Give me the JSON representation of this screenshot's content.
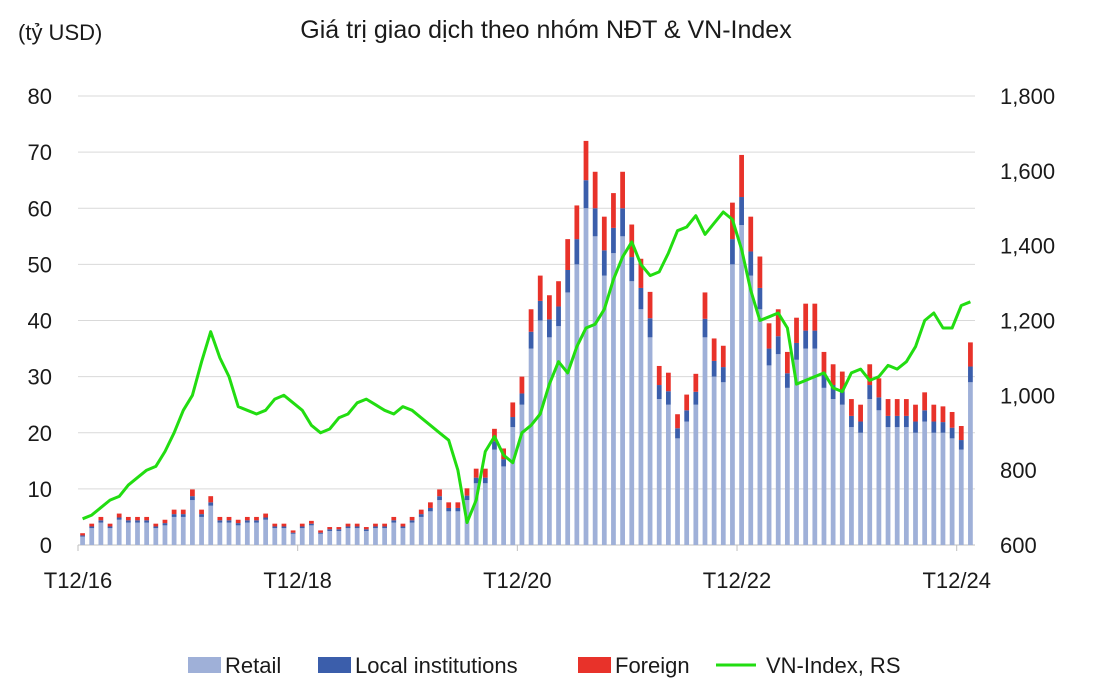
{
  "chart_data": {
    "type": "bar",
    "title": "Giá trị giao dịch theo nhóm NĐT & VN-Index",
    "y_unit_label": "(tỷ USD)",
    "ylim": [
      0,
      80
    ],
    "yticks": [
      "0",
      "10",
      "20",
      "30",
      "40",
      "50",
      "60",
      "70",
      "80"
    ],
    "y2lim": [
      600,
      1800
    ],
    "y2ticks": [
      "600",
      "800",
      "1,000",
      "1,200",
      "1,400",
      "1,600",
      "1,800"
    ],
    "x_tick_labels": [
      {
        "label": "T12/16",
        "index": 0
      },
      {
        "label": "T12/18",
        "index": 24
      },
      {
        "label": "T12/20",
        "index": 48
      },
      {
        "label": "T12/22",
        "index": 72
      },
      {
        "label": "T12/24",
        "index": 96
      }
    ],
    "stacked": true,
    "colors": {
      "retail": "#9fb0d8",
      "local": "#3b5eab",
      "foreign": "#e8322a",
      "vnindex": "#22dd11",
      "grid": "#d9d9d9"
    },
    "legend": [
      "Retail",
      "Local institutions",
      "Foreign",
      "VN-Index, RS"
    ],
    "legend_position": "bottom",
    "series": [
      {
        "name": "Retail",
        "values": [
          1.5,
          3,
          4,
          3,
          4.5,
          4,
          4,
          4,
          3,
          3.5,
          5,
          5,
          8,
          5,
          7,
          4,
          4,
          3.5,
          4,
          4,
          4.5,
          3,
          3,
          2,
          3,
          3.5,
          2,
          2.5,
          2.5,
          3,
          3,
          2.5,
          3,
          3,
          4,
          3,
          4,
          5,
          6,
          8,
          6,
          6,
          8,
          11,
          11,
          17,
          14,
          21,
          25,
          35,
          40,
          37,
          39,
          45,
          50,
          60,
          55,
          48,
          52,
          55,
          47,
          42,
          37,
          26,
          25,
          19,
          22,
          25,
          37,
          30,
          29,
          50,
          57,
          48,
          42,
          32,
          34,
          28,
          33,
          35,
          35,
          28,
          26,
          25,
          21,
          20,
          26,
          24,
          21,
          21,
          21,
          20,
          22,
          20,
          20,
          19,
          17,
          29
        ]
      },
      {
        "name": "Local institutions",
        "values": [
          0.2,
          0.3,
          0.4,
          0.3,
          0.4,
          0.4,
          0.4,
          0.4,
          0.3,
          0.4,
          0.5,
          0.5,
          0.7,
          0.5,
          0.6,
          0.4,
          0.4,
          0.4,
          0.4,
          0.4,
          0.4,
          0.3,
          0.3,
          0.2,
          0.3,
          0.3,
          0.2,
          0.3,
          0.3,
          0.3,
          0.3,
          0.3,
          0.3,
          0.3,
          0.4,
          0.3,
          0.4,
          0.5,
          0.6,
          0.7,
          0.6,
          0.6,
          0.8,
          1,
          1,
          1.5,
          1.3,
          1.8,
          2,
          3,
          3.5,
          3.2,
          3.5,
          4,
          4.5,
          5,
          5,
          4.5,
          4.5,
          5,
          4.3,
          3.8,
          3.4,
          2.5,
          2.4,
          1.8,
          2,
          2.3,
          3.3,
          2.8,
          2.7,
          4.5,
          5,
          4.3,
          3.8,
          3,
          3.2,
          2.6,
          3,
          3.2,
          3.2,
          2.6,
          2.5,
          2.4,
          2,
          2,
          2.5,
          2.3,
          2,
          2,
          2,
          2,
          2,
          2,
          1.9,
          1.9,
          1.7,
          2.8
        ]
      },
      {
        "name": "Foreign",
        "values": [
          0.4,
          0.5,
          0.6,
          0.5,
          0.7,
          0.6,
          0.6,
          0.6,
          0.5,
          0.6,
          0.8,
          0.8,
          1.2,
          0.8,
          1.1,
          0.6,
          0.6,
          0.6,
          0.6,
          0.6,
          0.7,
          0.5,
          0.5,
          0.4,
          0.5,
          0.5,
          0.4,
          0.4,
          0.4,
          0.5,
          0.5,
          0.4,
          0.5,
          0.5,
          0.6,
          0.5,
          0.6,
          0.8,
          1,
          1.2,
          1,
          1,
          1.3,
          1.6,
          1.6,
          2.2,
          1.9,
          2.6,
          3,
          4,
          4.5,
          4.3,
          4.5,
          5.5,
          6,
          7,
          6.5,
          6,
          6.2,
          6.5,
          5.8,
          5.2,
          4.7,
          3.4,
          3.3,
          2.5,
          2.8,
          3.2,
          4.7,
          4,
          3.8,
          6.5,
          7.5,
          6.2,
          5.6,
          4.5,
          4.8,
          3.8,
          4.5,
          4.8,
          4.8,
          3.8,
          3.7,
          3.5,
          3,
          3,
          3.7,
          3.4,
          3,
          3,
          3,
          3,
          3.2,
          3,
          2.8,
          2.8,
          2.5,
          4.3
        ]
      },
      {
        "name": "VN-Index, RS",
        "values": [
          670,
          680,
          700,
          720,
          730,
          760,
          780,
          800,
          810,
          850,
          900,
          960,
          1000,
          1090,
          1170,
          1100,
          1050,
          970,
          960,
          950,
          960,
          990,
          1000,
          980,
          960,
          920,
          900,
          910,
          940,
          950,
          980,
          990,
          975,
          960,
          950,
          970,
          960,
          940,
          920,
          900,
          880,
          800,
          660,
          720,
          850,
          890,
          840,
          820,
          900,
          920,
          950,
          1030,
          1090,
          1060,
          1130,
          1180,
          1190,
          1230,
          1310,
          1370,
          1410,
          1350,
          1320,
          1330,
          1380,
          1440,
          1450,
          1480,
          1430,
          1460,
          1490,
          1470,
          1390,
          1280,
          1200,
          1210,
          1220,
          1180,
          1030,
          1040,
          1050,
          1060,
          1020,
          1010,
          1060,
          1070,
          1040,
          1050,
          1080,
          1070,
          1090,
          1130,
          1200,
          1220,
          1180,
          1180,
          1240,
          1250
        ]
      }
    ]
  }
}
